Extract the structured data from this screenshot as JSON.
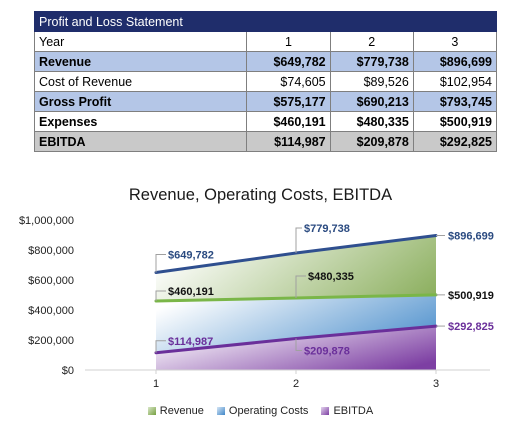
{
  "table": {
    "title": "Profit and Loss Statement",
    "header": {
      "label": "Year",
      "years": [
        "1",
        "2",
        "3"
      ]
    },
    "rows": [
      {
        "label": "Revenue",
        "values": [
          "$649,782",
          "$779,738",
          "$896,699"
        ]
      },
      {
        "label": "Cost of Revenue",
        "values": [
          "$74,605",
          "$89,526",
          "$102,954"
        ]
      },
      {
        "label": "Gross Profit",
        "values": [
          "$575,177",
          "$690,213",
          "$793,745"
        ]
      },
      {
        "label": "Expenses",
        "values": [
          "$460,191",
          "$480,335",
          "$500,919"
        ]
      },
      {
        "label": "EBITDA",
        "values": [
          "$114,987",
          "$209,878",
          "$292,825"
        ]
      }
    ]
  },
  "chart_data": {
    "type": "area",
    "title": "Revenue, Operating Costs, EBITDA",
    "categories": [
      "1",
      "2",
      "3"
    ],
    "ylim": [
      0,
      1000000
    ],
    "ytick_labels": [
      "$0",
      "$200,000",
      "$400,000",
      "$600,000",
      "$800,000",
      "$1,000,000"
    ],
    "grid": false,
    "legend_position": "bottom",
    "series": [
      {
        "name": "Revenue",
        "values": [
          649782,
          779738,
          896699
        ],
        "labels": [
          "$649,782",
          "$779,738",
          "$896,699"
        ],
        "color": "#2f4f8f",
        "fill": "#76a040"
      },
      {
        "name": "Operating Costs",
        "values": [
          460191,
          480335,
          500919
        ],
        "labels": [
          "$460,191",
          "$480,335",
          "$500,919"
        ],
        "color": "#7ab648",
        "fill": "#3e86c8"
      },
      {
        "name": "EBITDA",
        "values": [
          114987,
          209878,
          292825
        ],
        "labels": [
          "$114,987",
          "$209,878",
          "$292,825"
        ],
        "color": "#6a2f9a",
        "fill": "#7d3fa3"
      }
    ]
  }
}
